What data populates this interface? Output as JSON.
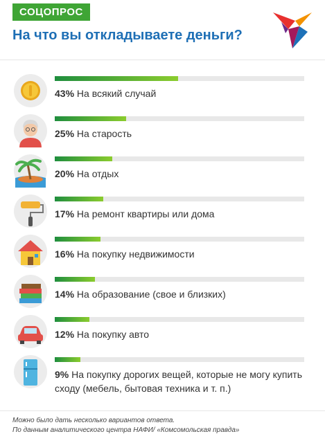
{
  "header": {
    "badge": "СОЦОПРОС",
    "title": "На что вы откладываете деньги?",
    "logo_icon": "swallow-bird-logo-icon"
  },
  "colors": {
    "badge": "#3fa535",
    "title": "#1e6fb5",
    "bar_start": "#1f8e3e",
    "bar_end": "#8bcc2e",
    "track": "#e8e8e8"
  },
  "chart_data": {
    "type": "bar",
    "orientation": "horizontal",
    "title": "На что вы откладываете деньги?",
    "categories": [
      "На всякий случай",
      "На старость",
      "На отдых",
      "На ремонт квартиры или дома",
      "На покупку недвижимости",
      "На образование (свое и близких)",
      "На покупку авто",
      "На покупку дорогих вещей, которые не могу купить сходу (мебель, бытовая техника и т. п.)"
    ],
    "values": [
      43,
      25,
      20,
      17,
      16,
      14,
      12,
      9
    ],
    "value_labels": [
      "43%",
      "25%",
      "20%",
      "17%",
      "16%",
      "14%",
      "12%",
      "9%"
    ],
    "icons": [
      "coin-icon",
      "grandmother-icon",
      "palm-beach-icon",
      "paint-roller-icon",
      "house-icon",
      "books-icon",
      "car-icon",
      "refrigerator-icon"
    ],
    "unit": "%",
    "xlim": [
      0,
      87
    ],
    "grid": false,
    "legend": "none"
  },
  "footer": {
    "note": "Можно было дать несколько вариантов ответа.",
    "source": "По данным аналитического центра НАФИ/ «Комсомольская правда»"
  }
}
